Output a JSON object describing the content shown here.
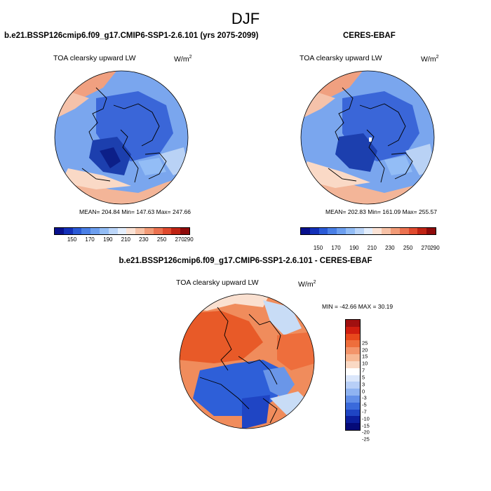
{
  "page": {
    "title": "DJF"
  },
  "panels": [
    {
      "title": "b.e21.BSSP126cmip6.f09_g17.CMIP6-SSP1-2.6.101 (yrs 2075-2099)",
      "variable": "TOA clearsky upward LW",
      "units": "W/m",
      "units_exp": "2",
      "stats": "MEAN= 204.84  Min= 147.63  Max= 247.66"
    },
    {
      "title": "CERES-EBAF",
      "variable": "TOA clearsky upward LW",
      "units": "W/m",
      "units_exp": "2",
      "stats": "MEAN= 202.83  Min= 161.09  Max= 255.57"
    },
    {
      "title": "b.e21.BSSP126cmip6.f09_g17.CMIP6-SSP1-2.6.101 - CERES-EBAF",
      "variable": "TOA clearsky upward LW",
      "units": "W/m",
      "units_exp": "2",
      "stats": "MIN = -42.66 MAX =  30.19"
    }
  ],
  "colorbar_abs": {
    "colors": [
      "#08108c",
      "#1330b8",
      "#2a5ad6",
      "#4a7fe6",
      "#6d9ff0",
      "#93bdf6",
      "#bcd6f9",
      "#e4eefc",
      "#fbe3d6",
      "#f7c2a7",
      "#f29b77",
      "#ec7250",
      "#e04a2e",
      "#c02414",
      "#8e0a0a"
    ],
    "tick_labels": [
      "150",
      "170",
      "190",
      "210",
      "230",
      "250",
      "270",
      "290"
    ]
  },
  "colorbar_diff": {
    "colors": [
      "#a01010",
      "#d01e10",
      "#e8481c",
      "#ee6e3c",
      "#f3946a",
      "#f7b894",
      "#fad9c4",
      "#ffffff",
      "#dbe7fb",
      "#b8cff7",
      "#8fb3f1",
      "#628fe8",
      "#3a6adb",
      "#1f45c4",
      "#0c1f9e",
      "#050a78"
    ],
    "tick_labels": [
      "25",
      "20",
      "15",
      "10",
      "7",
      "5",
      "3",
      "0",
      "-3",
      "-5",
      "-7",
      "-10",
      "-15",
      "-20",
      "-25"
    ]
  },
  "maps": [
    {
      "name": "model-map",
      "colors": [
        "#3a66d8",
        "#6e9ceb",
        "#f1a283",
        "#e07a5a",
        "#1c3fae",
        "#b9d2f5"
      ]
    },
    {
      "name": "obs-map",
      "colors": [
        "#3a66d8",
        "#6e9ceb",
        "#f1a283",
        "#e07a5a",
        "#1c3fae",
        "#b9d2f5"
      ]
    },
    {
      "name": "diff-map",
      "colors": [
        "#e85a28",
        "#f08c5c",
        "#2e5fd8",
        "#6a96e8",
        "#fae0d0",
        "#c8dcf6"
      ]
    }
  ]
}
